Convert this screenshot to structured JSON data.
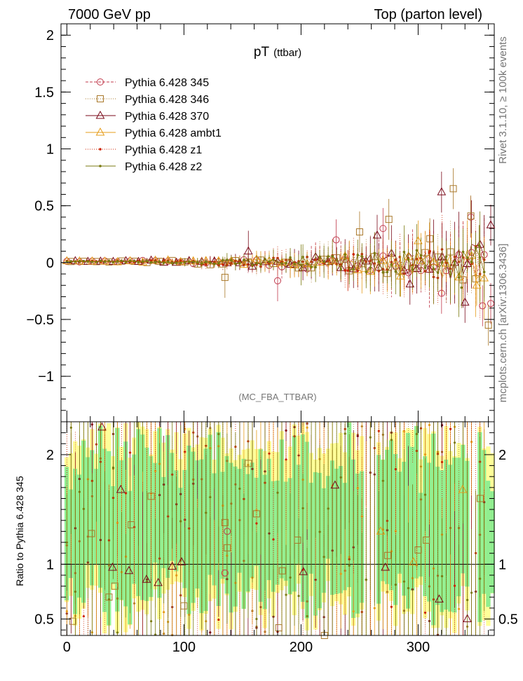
{
  "header": {
    "left": "7000 GeV pp",
    "right": "Top (parton level)"
  },
  "side_labels": {
    "rivet": "Rivet 3.1.10, ≥ 100k events",
    "mcplots": "mcplots.cern.ch [arXiv:1306.3436]"
  },
  "analysis_tag": "(MC_FBA_TTBAR)",
  "chart_data": [
    {
      "type": "scatter",
      "title": "pT",
      "title_suffix": "(ttbar)",
      "xlim": [
        -5,
        365
      ],
      "ylim": [
        -1.4,
        2.1
      ],
      "x_ticks": [
        0,
        100,
        200,
        300
      ],
      "y_ticks": [
        -1,
        -0.5,
        0,
        0.5,
        1,
        1.5,
        2
      ],
      "y_tick_labels": [
        "−1",
        "−0.5",
        "0",
        "0.5",
        "1",
        "1.5",
        "2"
      ],
      "legend_position": "top-left",
      "series": [
        {
          "name": "Pythia 6.428 345",
          "color": "#c0394b",
          "marker": "circle-open",
          "line": "dashed"
        },
        {
          "name": "Pythia 6.428 346",
          "color": "#a9782a",
          "marker": "square-open",
          "line": "dotted"
        },
        {
          "name": "Pythia 6.428 370",
          "color": "#7a0a1a",
          "marker": "triangle-open",
          "line": "solid"
        },
        {
          "name": "Pythia 6.428 ambt1",
          "color": "#e69c1a",
          "marker": "triangle-open",
          "line": "solid"
        },
        {
          "name": "Pythia 6.428 z1",
          "color": "#cc2200",
          "marker": "dot",
          "line": "dotted"
        },
        {
          "name": "Pythia 6.428 z2",
          "color": "#7a7a10",
          "marker": "dot",
          "line": "solid"
        }
      ],
      "highlighted_points": [
        {
          "series": 0,
          "x": 270,
          "y": 0.3
        },
        {
          "series": 0,
          "x": 230,
          "y": 0.2
        },
        {
          "series": 0,
          "x": 345,
          "y": 0.4
        },
        {
          "series": 0,
          "x": 355,
          "y": -0.38
        },
        {
          "series": 0,
          "x": 362,
          "y": -0.36
        },
        {
          "series": 0,
          "x": 180,
          "y": -0.16
        },
        {
          "series": 0,
          "x": 320,
          "y": -0.27
        },
        {
          "series": 1,
          "x": 330,
          "y": 0.65
        },
        {
          "series": 1,
          "x": 345,
          "y": 0.41
        },
        {
          "series": 1,
          "x": 275,
          "y": 0.38
        },
        {
          "series": 1,
          "x": 360,
          "y": -0.55
        },
        {
          "series": 1,
          "x": 250,
          "y": 0.27
        },
        {
          "series": 1,
          "x": 135,
          "y": -0.13
        },
        {
          "series": 1,
          "x": 310,
          "y": 0.21
        },
        {
          "series": 2,
          "x": 320,
          "y": 0.62
        },
        {
          "series": 2,
          "x": 265,
          "y": 0.24
        },
        {
          "series": 2,
          "x": 340,
          "y": -0.35
        },
        {
          "series": 2,
          "x": 362,
          "y": 0.33
        },
        {
          "series": 2,
          "x": 293,
          "y": -0.19
        },
        {
          "series": 2,
          "x": 155,
          "y": 0.1
        },
        {
          "series": 3,
          "x": 300,
          "y": 0.19
        },
        {
          "series": 3,
          "x": 285,
          "y": -0.12
        },
        {
          "series": 3,
          "x": 350,
          "y": -0.2
        },
        {
          "series": 4,
          "x": 310,
          "y": 0.1
        },
        {
          "series": 4,
          "x": 240,
          "y": -0.07
        },
        {
          "series": 5,
          "x": 337,
          "y": -0.22
        },
        {
          "series": 5,
          "x": 200,
          "y": -0.02
        },
        {
          "series": 5,
          "x": 352,
          "y": 0.15
        }
      ]
    },
    {
      "type": "scatter",
      "ylabel": "Ratio to Pythia 6.428 345",
      "xlim": [
        -5,
        365
      ],
      "ylim": [
        0.35,
        2.3
      ],
      "x_ticks": [
        0,
        100,
        200,
        300
      ],
      "y_ticks": [
        0.5,
        1,
        2
      ],
      "y_tick_labels": [
        "0.5",
        "1",
        "2"
      ],
      "reference_line": 1,
      "band_colors": {
        "inner": "#90ee90",
        "outer": "#ffff99"
      },
      "highlighted_points": [
        {
          "series": 2,
          "x": 30,
          "y": 2.25
        },
        {
          "series": 2,
          "x": 46,
          "y": 1.68
        },
        {
          "series": 2,
          "x": 39,
          "y": 0.97
        },
        {
          "series": 2,
          "x": 53,
          "y": 0.94
        },
        {
          "series": 2,
          "x": 90,
          "y": 0.98
        },
        {
          "series": 2,
          "x": 98,
          "y": 1.02
        },
        {
          "series": 2,
          "x": 68,
          "y": 0.86
        },
        {
          "series": 2,
          "x": 78,
          "y": 0.83
        },
        {
          "series": 2,
          "x": 229,
          "y": 1.72
        },
        {
          "series": 2,
          "x": 202,
          "y": 0.93
        },
        {
          "series": 2,
          "x": 272,
          "y": 0.97
        },
        {
          "series": 2,
          "x": 318,
          "y": 0.68
        },
        {
          "series": 2,
          "x": 342,
          "y": 0.5
        },
        {
          "series": 1,
          "x": 5,
          "y": 0.48
        },
        {
          "series": 1,
          "x": 21,
          "y": 1.28
        },
        {
          "series": 1,
          "x": 36,
          "y": 0.7
        },
        {
          "series": 1,
          "x": 41,
          "y": 0.8
        },
        {
          "series": 1,
          "x": 55,
          "y": 1.36
        },
        {
          "series": 1,
          "x": 72,
          "y": 1.62
        },
        {
          "series": 1,
          "x": 100,
          "y": 0.62
        },
        {
          "series": 1,
          "x": 135,
          "y": 1.38
        },
        {
          "series": 1,
          "x": 137,
          "y": 1.15
        },
        {
          "series": 1,
          "x": 155,
          "y": 1.92
        },
        {
          "series": 1,
          "x": 162,
          "y": 1.46
        },
        {
          "series": 1,
          "x": 181,
          "y": 0.42
        },
        {
          "series": 1,
          "x": 184,
          "y": 0.94
        },
        {
          "series": 1,
          "x": 197,
          "y": 1.22
        },
        {
          "series": 1,
          "x": 220,
          "y": 0.35
        },
        {
          "series": 1,
          "x": 274,
          "y": 1.08
        },
        {
          "series": 1,
          "x": 300,
          "y": 1.13
        },
        {
          "series": 1,
          "x": 307,
          "y": 1.22
        },
        {
          "series": 1,
          "x": 353,
          "y": 1.6
        },
        {
          "series": 0,
          "x": 137,
          "y": 1.3
        },
        {
          "series": 0,
          "x": 135,
          "y": 0.92
        },
        {
          "series": 3,
          "x": 268,
          "y": 1.3
        },
        {
          "series": 3,
          "x": 296,
          "y": 1.02
        },
        {
          "series": 3,
          "x": 338,
          "y": 1.68
        }
      ]
    }
  ]
}
